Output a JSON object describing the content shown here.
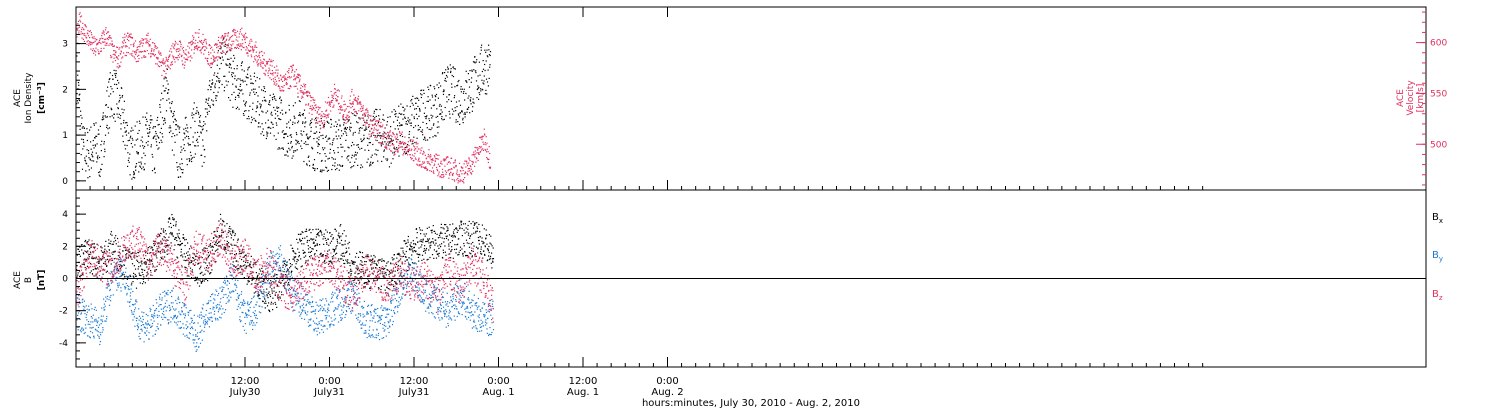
{
  "chart_data": [
    {
      "type": "scatter",
      "panel": "top",
      "left_axis_label": [
        "ACE",
        "Ion Density",
        "[cm⁻³]"
      ],
      "right_axis_label": [
        "ACE",
        "Velocity",
        "[km/s]"
      ],
      "left_ylim": [
        -0.2,
        3.8
      ],
      "left_ticks": [
        "0",
        "1",
        "2",
        "3"
      ],
      "right_ylim": [
        455,
        635
      ],
      "right_ticks": [
        "500",
        "550",
        "600"
      ],
      "series": [
        {
          "color": "#000000",
          "axis": "left",
          "points": [
            [
              0.0,
              2.3
            ],
            [
              0.5,
              1.6
            ],
            [
              1.0,
              0.7
            ],
            [
              2.0,
              0.6
            ],
            [
              3.0,
              0.8
            ],
            [
              4.0,
              0.6
            ],
            [
              5.0,
              1.5
            ],
            [
              6.0,
              2.0
            ],
            [
              7.0,
              1.7
            ],
            [
              8.0,
              1.2
            ],
            [
              9.0,
              0.6
            ],
            [
              10.0,
              0.7
            ],
            [
              11.0,
              0.8
            ],
            [
              12.0,
              1.0
            ],
            [
              13.0,
              0.6
            ],
            [
              14.0,
              1.3
            ],
            [
              15.0,
              2.0
            ],
            [
              16.0,
              1.2
            ],
            [
              17.0,
              0.6
            ],
            [
              18.0,
              0.8
            ],
            [
              19.0,
              1.0
            ],
            [
              20.0,
              1.2
            ],
            [
              21.0,
              0.7
            ],
            [
              22.0,
              1.8
            ],
            [
              23.0,
              2.2
            ],
            [
              24.0,
              2.6
            ],
            [
              25.0,
              2.5
            ],
            [
              26.0,
              2.2
            ],
            [
              27.0,
              2.1
            ],
            [
              28.0,
              2.0
            ],
            [
              29.0,
              1.9
            ],
            [
              30.0,
              1.7
            ],
            [
              31.0,
              1.6
            ],
            [
              32.0,
              1.5
            ],
            [
              33.0,
              1.3
            ],
            [
              34.0,
              1.3
            ],
            [
              35.0,
              1.1
            ],
            [
              36.0,
              1.1
            ],
            [
              37.0,
              1.3
            ],
            [
              38.0,
              1.0
            ],
            [
              39.0,
              0.9
            ],
            [
              40.0,
              0.8
            ],
            [
              41.0,
              0.8
            ],
            [
              42.0,
              0.8
            ],
            [
              43.0,
              0.8
            ],
            [
              44.0,
              0.8
            ],
            [
              45.0,
              0.9
            ],
            [
              46.0,
              0.9
            ],
            [
              47.0,
              0.9
            ],
            [
              48.0,
              0.9
            ],
            [
              49.0,
              0.9
            ],
            [
              50.0,
              1.0
            ],
            [
              51.0,
              1.0
            ],
            [
              52.0,
              0.9
            ],
            [
              53.0,
              1.0
            ],
            [
              54.0,
              1.1
            ],
            [
              55.0,
              1.2
            ],
            [
              56.0,
              1.3
            ],
            [
              57.0,
              1.4
            ],
            [
              58.0,
              1.5
            ],
            [
              59.0,
              1.5
            ],
            [
              60.0,
              1.6
            ],
            [
              61.0,
              1.8
            ],
            [
              62.0,
              2.0
            ],
            [
              63.0,
              1.9
            ],
            [
              64.0,
              1.8
            ],
            [
              65.0,
              1.9
            ],
            [
              66.0,
              2.1
            ],
            [
              67.0,
              2.3
            ],
            [
              68.0,
              2.5
            ],
            [
              69.0,
              2.5
            ]
          ]
        },
        {
          "color": "#e0305e",
          "axis": "right",
          "points": [
            [
              0.0,
              600
            ],
            [
              0.5,
              620
            ],
            [
              1.0,
              615
            ],
            [
              2.0,
              605
            ],
            [
              3.0,
              595
            ],
            [
              4.0,
              598
            ],
            [
              5.0,
              608
            ],
            [
              6.0,
              590
            ],
            [
              7.0,
              585
            ],
            [
              8.0,
              598
            ],
            [
              9.0,
              600
            ],
            [
              10.0,
              590
            ],
            [
              11.0,
              595
            ],
            [
              12.0,
              600
            ],
            [
              13.0,
              592
            ],
            [
              14.0,
              580
            ],
            [
              15.0,
              575
            ],
            [
              16.0,
              590
            ],
            [
              17.0,
              595
            ],
            [
              18.0,
              585
            ],
            [
              19.0,
              592
            ],
            [
              20.0,
              605
            ],
            [
              21.0,
              600
            ],
            [
              22.0,
              588
            ],
            [
              23.0,
              590
            ],
            [
              24.0,
              598
            ],
            [
              25.0,
              600
            ],
            [
              26.0,
              602
            ],
            [
              27.0,
              605
            ],
            [
              28.0,
              603
            ],
            [
              29.0,
              595
            ],
            [
              30.0,
              590
            ],
            [
              31.0,
              580
            ],
            [
              32.0,
              578
            ],
            [
              33.0,
              570
            ],
            [
              34.0,
              560
            ],
            [
              35.0,
              560
            ],
            [
              36.0,
              570
            ],
            [
              37.0,
              560
            ],
            [
              38.0,
              550
            ],
            [
              39.0,
              540
            ],
            [
              40.0,
              530
            ],
            [
              41.0,
              525
            ],
            [
              42.0,
              538
            ],
            [
              43.0,
              550
            ],
            [
              44.0,
              540
            ],
            [
              45.0,
              530
            ],
            [
              46.0,
              545
            ],
            [
              47.0,
              538
            ],
            [
              48.0,
              530
            ],
            [
              49.0,
              518
            ],
            [
              50.0,
              515
            ],
            [
              51.0,
              510
            ],
            [
              52.0,
              505
            ],
            [
              53.0,
              500
            ],
            [
              54.0,
              505
            ],
            [
              55.0,
              495
            ],
            [
              56.0,
              495
            ],
            [
              57.0,
              490
            ],
            [
              58.0,
              483
            ],
            [
              59.0,
              485
            ],
            [
              60.0,
              480
            ],
            [
              61.0,
              478
            ],
            [
              62.0,
              478
            ],
            [
              63.0,
              475
            ],
            [
              64.0,
              472
            ],
            [
              65.0,
              475
            ],
            [
              66.0,
              483
            ],
            [
              67.0,
              495
            ],
            [
              68.0,
              505
            ],
            [
              69.0,
              485
            ]
          ]
        }
      ]
    },
    {
      "type": "scatter",
      "panel": "bottom",
      "left_axis_label": [
        "ACE",
        "B",
        "[nT]"
      ],
      "ylim": [
        -5.5,
        5.5
      ],
      "ticks": [
        "-4",
        "-2",
        "0",
        "2",
        "4"
      ],
      "zero_line": true,
      "legend_position": "right",
      "legend": [
        {
          "label": "B",
          "sub": "x",
          "color": "#000000"
        },
        {
          "label": "B",
          "sub": "y",
          "color": "#1a7ad4"
        },
        {
          "label": "B",
          "sub": "z",
          "color": "#e0305e"
        }
      ],
      "series": [
        {
          "name": "Bx",
          "color": "#000000",
          "points": [
            [
              0,
              1.0
            ],
            [
              2,
              1.5
            ],
            [
              4,
              1.0
            ],
            [
              6,
              2.0
            ],
            [
              8,
              1.0
            ],
            [
              10,
              0.5
            ],
            [
              12,
              1.0
            ],
            [
              14,
              2.0
            ],
            [
              16,
              3.0
            ],
            [
              18,
              1.5
            ],
            [
              20,
              0.5
            ],
            [
              22,
              1.0
            ],
            [
              24,
              3.0
            ],
            [
              26,
              2.0
            ],
            [
              28,
              1.0
            ],
            [
              30,
              0.0
            ],
            [
              32,
              -1.0
            ],
            [
              34,
              -0.5
            ],
            [
              36,
              1.5
            ],
            [
              38,
              2.0
            ],
            [
              40,
              2.0
            ],
            [
              42,
              2.0
            ],
            [
              44,
              2.3
            ],
            [
              46,
              1.0
            ],
            [
              48,
              0.5
            ],
            [
              50,
              0.5
            ],
            [
              52,
              0.0
            ],
            [
              54,
              1.0
            ],
            [
              56,
              2.0
            ],
            [
              58,
              2.2
            ],
            [
              60,
              2.3
            ],
            [
              62,
              2.3
            ],
            [
              64,
              2.5
            ],
            [
              66,
              2.5
            ],
            [
              68,
              2.3
            ],
            [
              70,
              1.0
            ]
          ]
        },
        {
          "name": "By",
          "color": "#1a7ad4",
          "points": [
            [
              0,
              -2.0
            ],
            [
              2,
              -2.5
            ],
            [
              4,
              -3.0
            ],
            [
              6,
              0.0
            ],
            [
              8,
              0.5
            ],
            [
              10,
              -2.5
            ],
            [
              12,
              -3.0
            ],
            [
              14,
              -2.0
            ],
            [
              16,
              -1.5
            ],
            [
              18,
              -2.5
            ],
            [
              20,
              -3.5
            ],
            [
              22,
              -2.0
            ],
            [
              24,
              -1.5
            ],
            [
              26,
              0.0
            ],
            [
              28,
              -2.5
            ],
            [
              30,
              -2.0
            ],
            [
              32,
              0.5
            ],
            [
              34,
              1.0
            ],
            [
              36,
              -1.0
            ],
            [
              38,
              -1.5
            ],
            [
              40,
              -2.5
            ],
            [
              42,
              -2.0
            ],
            [
              44,
              -1.5
            ],
            [
              46,
              -1.0
            ],
            [
              48,
              -2.5
            ],
            [
              50,
              -2.8
            ],
            [
              52,
              -2.5
            ],
            [
              54,
              -0.5
            ],
            [
              56,
              0.5
            ],
            [
              58,
              -1.0
            ],
            [
              60,
              -1.5
            ],
            [
              62,
              -2.0
            ],
            [
              64,
              -1.0
            ],
            [
              66,
              -2.0
            ],
            [
              68,
              -2.5
            ],
            [
              70,
              -2.3
            ]
          ]
        },
        {
          "name": "Bz",
          "color": "#e0305e",
          "points": [
            [
              0,
              -1.0
            ],
            [
              2,
              1.5
            ],
            [
              4,
              1.0
            ],
            [
              6,
              0.5
            ],
            [
              8,
              2.0
            ],
            [
              10,
              2.5
            ],
            [
              12,
              1.0
            ],
            [
              14,
              2.0
            ],
            [
              16,
              1.0
            ],
            [
              18,
              -0.5
            ],
            [
              20,
              2.0
            ],
            [
              22,
              1.5
            ],
            [
              24,
              2.5
            ],
            [
              26,
              1.0
            ],
            [
              28,
              1.5
            ],
            [
              30,
              0.0
            ],
            [
              32,
              1.0
            ],
            [
              34,
              -0.5
            ],
            [
              36,
              -1.0
            ],
            [
              38,
              0.0
            ],
            [
              40,
              0.5
            ],
            [
              42,
              1.0
            ],
            [
              44,
              0.0
            ],
            [
              46,
              -1.0
            ],
            [
              48,
              0.5
            ],
            [
              50,
              0.0
            ],
            [
              52,
              -0.5
            ],
            [
              54,
              0.5
            ],
            [
              56,
              -0.5
            ],
            [
              58,
              0.0
            ],
            [
              60,
              -1.0
            ],
            [
              62,
              0.5
            ],
            [
              64,
              -0.5
            ],
            [
              66,
              1.0
            ],
            [
              68,
              0.0
            ],
            [
              70,
              -2.5
            ]
          ]
        }
      ]
    }
  ],
  "x_axis": {
    "ticks": [
      {
        "time": "12:00",
        "date": "July30"
      },
      {
        "time": "0:00",
        "date": "July31"
      },
      {
        "time": "12:00",
        "date": "July31"
      },
      {
        "time": "0:00",
        "date": "Aug. 1"
      },
      {
        "time": "12:00",
        "date": "Aug. 1"
      },
      {
        "time": "0:00",
        "date": "Aug. 2"
      }
    ],
    "title": "hours:minutes, July 30, 2010 - Aug.  2, 2010"
  }
}
